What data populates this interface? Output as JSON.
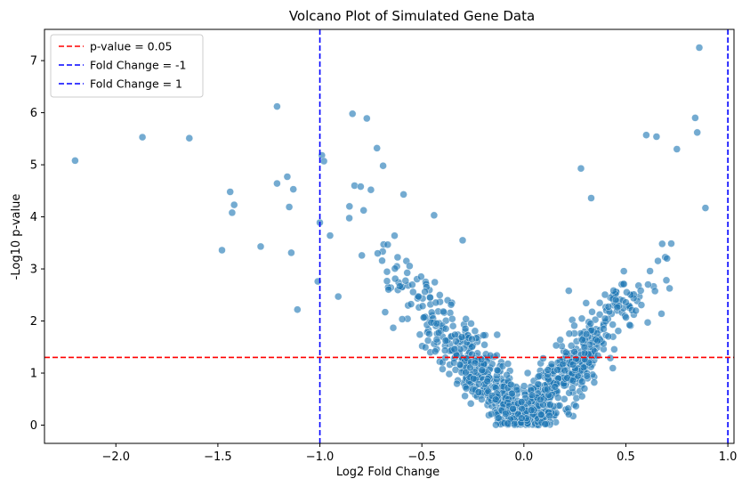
{
  "chart_data": {
    "type": "scatter",
    "title": "Volcano Plot of Simulated Gene Data",
    "xlabel": "Log2 Fold Change",
    "ylabel": "-Log10 p-value",
    "xlim": [
      -2.35,
      1.03
    ],
    "ylim": [
      -0.35,
      7.6
    ],
    "xticks": [
      -2.0,
      -1.5,
      -1.0,
      -0.5,
      0.0,
      0.5,
      1.0
    ],
    "xtick_labels": [
      "−2.0",
      "−1.5",
      "−1.0",
      "−0.5",
      "0.0",
      "0.5",
      "1.0"
    ],
    "yticks": [
      0,
      1,
      2,
      3,
      4,
      5,
      6,
      7
    ],
    "ytick_labels": [
      "0",
      "1",
      "2",
      "3",
      "4",
      "5",
      "6",
      "7"
    ],
    "point_color": "#1f77b4",
    "thresholds": [
      {
        "label": "p-value = 0.05",
        "orientation": "horizontal",
        "value": 1.301,
        "color": "#ff0000"
      },
      {
        "label": "Fold Change = -1",
        "orientation": "vertical",
        "value": -1.0,
        "color": "#0000ff"
      },
      {
        "label": "Fold Change = 1",
        "orientation": "vertical",
        "value": 1.0,
        "color": "#0000ff"
      }
    ],
    "legend": {
      "position": "top-left",
      "entries": [
        "p-value = 0.05",
        "Fold Change = -1",
        "Fold Change = 1"
      ]
    },
    "outliers": [
      [
        -2.2,
        5.08
      ],
      [
        -1.87,
        5.53
      ],
      [
        -1.64,
        5.51
      ],
      [
        -1.44,
        4.48
      ],
      [
        -1.43,
        4.08
      ],
      [
        -1.42,
        4.23
      ],
      [
        -1.48,
        3.36
      ],
      [
        -1.29,
        3.43
      ],
      [
        -1.21,
        6.12
      ],
      [
        -1.21,
        4.64
      ],
      [
        -1.16,
        4.77
      ],
      [
        -1.15,
        4.19
      ],
      [
        -1.13,
        4.53
      ],
      [
        -1.14,
        3.31
      ],
      [
        -1.11,
        2.22
      ],
      [
        -1.01,
        2.76
      ],
      [
        -1.0,
        3.89
      ],
      [
        -0.99,
        5.18
      ],
      [
        -0.98,
        5.07
      ],
      [
        -0.84,
        5.98
      ],
      [
        -0.77,
        5.89
      ],
      [
        -0.72,
        5.32
      ],
      [
        -0.69,
        4.98
      ],
      [
        -0.83,
        4.6
      ],
      [
        -0.8,
        4.58
      ],
      [
        -0.75,
        4.52
      ],
      [
        -0.59,
        4.43
      ],
      [
        -0.44,
        4.03
      ],
      [
        -0.3,
        3.55
      ],
      [
        -0.95,
        3.64
      ],
      [
        -0.91,
        2.47
      ],
      [
        0.86,
        7.25
      ],
      [
        0.84,
        5.9
      ],
      [
        0.85,
        5.62
      ],
      [
        0.89,
        4.17
      ],
      [
        0.6,
        5.57
      ],
      [
        0.65,
        5.54
      ],
      [
        0.75,
        5.3
      ],
      [
        0.28,
        4.93
      ],
      [
        0.33,
        4.36
      ],
      [
        0.22,
        2.58
      ],
      [
        0.2,
        1.05
      ]
    ],
    "cloud": {
      "description": "V-shaped distribution: roughly 1000 genes with y ≈ 4.5·|x| plus noise, x in [-0.9, 0.9]",
      "count": 1000,
      "slope": 4.5,
      "x_range": [
        -0.9,
        0.9
      ]
    }
  }
}
